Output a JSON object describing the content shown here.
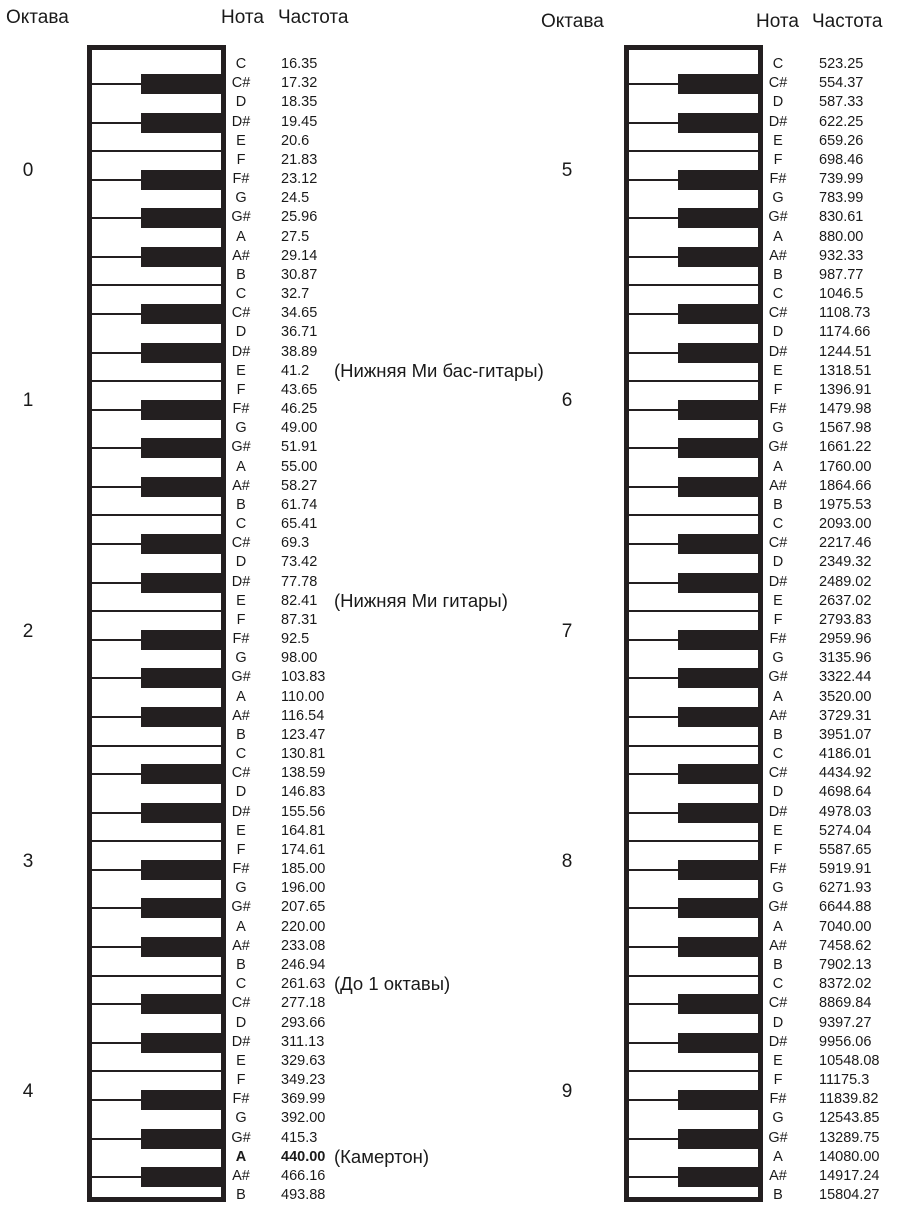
{
  "headers": {
    "octave": "Октава",
    "note": "Нота",
    "frequency": "Частота"
  },
  "columns": [
    {
      "octaves": [
        "0",
        "1",
        "2",
        "3",
        "4"
      ],
      "keys": [
        {
          "note": "C",
          "freq": "16.35"
        },
        {
          "note": "C#",
          "freq": "17.32"
        },
        {
          "note": "D",
          "freq": "18.35"
        },
        {
          "note": "D#",
          "freq": "19.45"
        },
        {
          "note": "E",
          "freq": "20.6"
        },
        {
          "note": "F",
          "freq": "21.83"
        },
        {
          "note": "F#",
          "freq": "23.12"
        },
        {
          "note": "G",
          "freq": "24.5"
        },
        {
          "note": "G#",
          "freq": "25.96"
        },
        {
          "note": "A",
          "freq": "27.5"
        },
        {
          "note": "A#",
          "freq": "29.14"
        },
        {
          "note": "B",
          "freq": "30.87"
        },
        {
          "note": "C",
          "freq": "32.7"
        },
        {
          "note": "C#",
          "freq": "34.65"
        },
        {
          "note": "D",
          "freq": "36.71"
        },
        {
          "note": "D#",
          "freq": "38.89"
        },
        {
          "note": "E",
          "freq": "41.2",
          "annotation": "(Нижняя Ми бас-гитары)"
        },
        {
          "note": "F",
          "freq": "43.65"
        },
        {
          "note": "F#",
          "freq": "46.25"
        },
        {
          "note": "G",
          "freq": "49.00"
        },
        {
          "note": "G#",
          "freq": "51.91"
        },
        {
          "note": "A",
          "freq": "55.00"
        },
        {
          "note": "A#",
          "freq": "58.27"
        },
        {
          "note": "B",
          "freq": "61.74"
        },
        {
          "note": "C",
          "freq": "65.41"
        },
        {
          "note": "C#",
          "freq": "69.3"
        },
        {
          "note": "D",
          "freq": "73.42"
        },
        {
          "note": "D#",
          "freq": "77.78"
        },
        {
          "note": "E",
          "freq": "82.41",
          "annotation": "(Нижняя Ми гитары)"
        },
        {
          "note": "F",
          "freq": "87.31"
        },
        {
          "note": "F#",
          "freq": "92.5"
        },
        {
          "note": "G",
          "freq": "98.00"
        },
        {
          "note": "G#",
          "freq": "103.83"
        },
        {
          "note": "A",
          "freq": "110.00"
        },
        {
          "note": "A#",
          "freq": "116.54"
        },
        {
          "note": "B",
          "freq": "123.47"
        },
        {
          "note": "C",
          "freq": "130.81"
        },
        {
          "note": "C#",
          "freq": "138.59"
        },
        {
          "note": "D",
          "freq": "146.83"
        },
        {
          "note": "D#",
          "freq": "155.56"
        },
        {
          "note": "E",
          "freq": "164.81"
        },
        {
          "note": "F",
          "freq": "174.61"
        },
        {
          "note": "F#",
          "freq": "185.00"
        },
        {
          "note": "G",
          "freq": "196.00"
        },
        {
          "note": "G#",
          "freq": "207.65"
        },
        {
          "note": "A",
          "freq": "220.00"
        },
        {
          "note": "A#",
          "freq": "233.08"
        },
        {
          "note": "B",
          "freq": "246.94"
        },
        {
          "note": "C",
          "freq": "261.63",
          "annotation": "(До 1 октавы)"
        },
        {
          "note": "C#",
          "freq": "277.18"
        },
        {
          "note": "D",
          "freq": "293.66"
        },
        {
          "note": "D#",
          "freq": "311.13"
        },
        {
          "note": "E",
          "freq": "329.63"
        },
        {
          "note": "F",
          "freq": "349.23"
        },
        {
          "note": "F#",
          "freq": "369.99"
        },
        {
          "note": "G",
          "freq": "392.00"
        },
        {
          "note": "G#",
          "freq": "415.3"
        },
        {
          "note": "A",
          "freq": "440.00",
          "bold": true,
          "annotation": "(Камертон)"
        },
        {
          "note": "A#",
          "freq": "466.16"
        },
        {
          "note": "B",
          "freq": "493.88"
        }
      ]
    },
    {
      "octaves": [
        "5",
        "6",
        "7",
        "8",
        "9"
      ],
      "keys": [
        {
          "note": "C",
          "freq": "523.25"
        },
        {
          "note": "C#",
          "freq": "554.37"
        },
        {
          "note": "D",
          "freq": "587.33"
        },
        {
          "note": "D#",
          "freq": "622.25"
        },
        {
          "note": "E",
          "freq": "659.26"
        },
        {
          "note": "F",
          "freq": "698.46"
        },
        {
          "note": "F#",
          "freq": "739.99"
        },
        {
          "note": "G",
          "freq": "783.99"
        },
        {
          "note": "G#",
          "freq": "830.61"
        },
        {
          "note": "A",
          "freq": "880.00"
        },
        {
          "note": "A#",
          "freq": "932.33"
        },
        {
          "note": "B",
          "freq": "987.77"
        },
        {
          "note": "C",
          "freq": "1046.5"
        },
        {
          "note": "C#",
          "freq": "1108.73"
        },
        {
          "note": "D",
          "freq": "1174.66"
        },
        {
          "note": "D#",
          "freq": "1244.51"
        },
        {
          "note": "E",
          "freq": "1318.51"
        },
        {
          "note": "F",
          "freq": "1396.91"
        },
        {
          "note": "F#",
          "freq": "1479.98"
        },
        {
          "note": "G",
          "freq": "1567.98"
        },
        {
          "note": "G#",
          "freq": "1661.22"
        },
        {
          "note": "A",
          "freq": "1760.00"
        },
        {
          "note": "A#",
          "freq": "1864.66"
        },
        {
          "note": "B",
          "freq": "1975.53"
        },
        {
          "note": "C",
          "freq": "2093.00"
        },
        {
          "note": "C#",
          "freq": "2217.46"
        },
        {
          "note": "D",
          "freq": "2349.32"
        },
        {
          "note": "D#",
          "freq": "2489.02"
        },
        {
          "note": "E",
          "freq": "2637.02"
        },
        {
          "note": "F",
          "freq": "2793.83"
        },
        {
          "note": "F#",
          "freq": "2959.96"
        },
        {
          "note": "G",
          "freq": "3135.96"
        },
        {
          "note": "G#",
          "freq": "3322.44"
        },
        {
          "note": "A",
          "freq": "3520.00"
        },
        {
          "note": "A#",
          "freq": "3729.31"
        },
        {
          "note": "B",
          "freq": "3951.07"
        },
        {
          "note": "C",
          "freq": "4186.01"
        },
        {
          "note": "C#",
          "freq": "4434.92"
        },
        {
          "note": "D",
          "freq": "4698.64"
        },
        {
          "note": "D#",
          "freq": "4978.03"
        },
        {
          "note": "E",
          "freq": "5274.04"
        },
        {
          "note": "F",
          "freq": "5587.65"
        },
        {
          "note": "F#",
          "freq": "5919.91"
        },
        {
          "note": "G",
          "freq": "6271.93"
        },
        {
          "note": "G#",
          "freq": "6644.88"
        },
        {
          "note": "A",
          "freq": "7040.00"
        },
        {
          "note": "A#",
          "freq": "7458.62"
        },
        {
          "note": "B",
          "freq": "7902.13"
        },
        {
          "note": "C",
          "freq": "8372.02"
        },
        {
          "note": "C#",
          "freq": "8869.84"
        },
        {
          "note": "D",
          "freq": "9397.27"
        },
        {
          "note": "D#",
          "freq": "9956.06"
        },
        {
          "note": "E",
          "freq": "10548.08"
        },
        {
          "note": "F",
          "freq": "11175.3"
        },
        {
          "note": "F#",
          "freq": "11839.82"
        },
        {
          "note": "G",
          "freq": "12543.85"
        },
        {
          "note": "G#",
          "freq": "13289.75"
        },
        {
          "note": "A",
          "freq": "14080.00"
        },
        {
          "note": "A#",
          "freq": "14917.24"
        },
        {
          "note": "B",
          "freq": "15804.27"
        }
      ]
    }
  ]
}
